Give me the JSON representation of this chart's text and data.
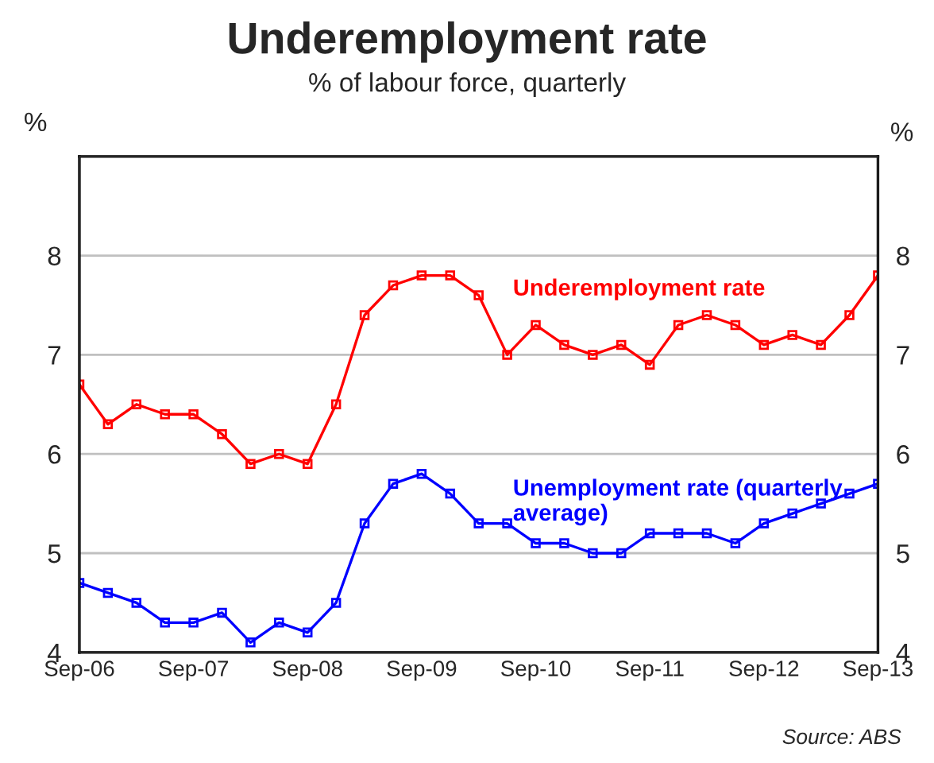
{
  "chart_data": {
    "type": "line",
    "title": "Underemployment rate",
    "subtitle": "% of labour force, quarterly",
    "ylabel": "%",
    "y2label": "%",
    "categories": [
      "Sep-06",
      null,
      null,
      null,
      "Sep-07",
      null,
      null,
      null,
      "Sep-08",
      null,
      null,
      null,
      "Sep-09",
      null,
      null,
      null,
      "Sep-10",
      null,
      null,
      null,
      "Sep-11",
      null,
      null,
      null,
      "Sep-12",
      null,
      null,
      null,
      "Sep-13"
    ],
    "series": [
      {
        "name": "Underemployment rate",
        "color": "#ff0000",
        "values": [
          6.7,
          6.3,
          6.5,
          6.4,
          6.4,
          6.2,
          5.9,
          6.0,
          5.9,
          6.5,
          7.4,
          7.7,
          7.8,
          7.8,
          7.6,
          7.0,
          7.3,
          7.1,
          7.0,
          7.1,
          6.9,
          7.3,
          7.4,
          7.3,
          7.1,
          7.2,
          7.1,
          7.4,
          7.8
        ]
      },
      {
        "name": "Unemployment rate (quarterly average)",
        "color": "#0000ff",
        "values": [
          4.7,
          4.6,
          4.5,
          4.3,
          4.3,
          4.4,
          4.1,
          4.3,
          4.2,
          4.5,
          5.3,
          5.7,
          5.8,
          5.6,
          5.3,
          5.3,
          5.1,
          5.1,
          5.0,
          5.0,
          5.2,
          5.2,
          5.2,
          5.1,
          5.3,
          5.4,
          5.5,
          5.6,
          5.7
        ]
      }
    ],
    "ylim": [
      4,
      9
    ],
    "yticks": [
      4,
      5,
      6,
      7,
      8
    ],
    "y2lim": [
      4,
      9
    ],
    "y2ticks": [
      4,
      5,
      6,
      7,
      8
    ],
    "grid": "y",
    "legend": false,
    "marker": "square",
    "line_style": "solid",
    "annotations": [
      "Source: ABS"
    ]
  }
}
